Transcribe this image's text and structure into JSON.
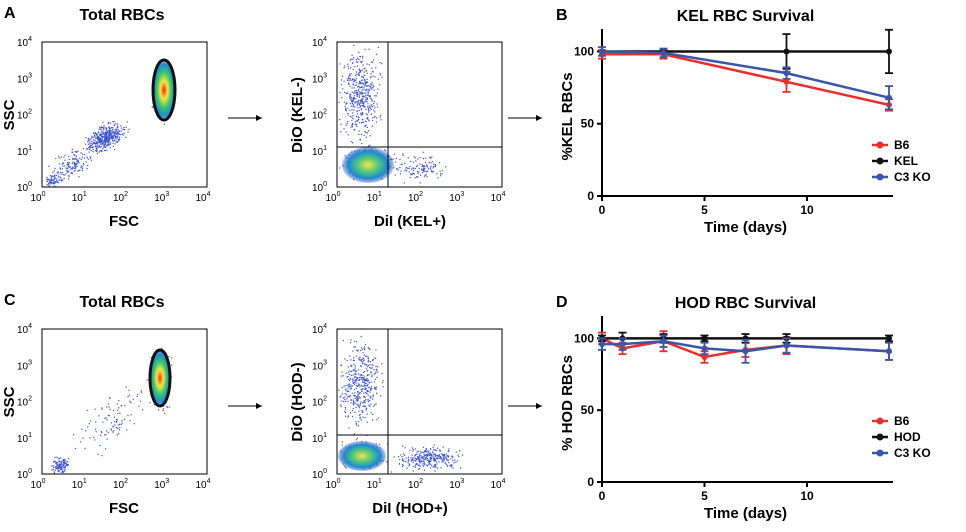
{
  "panels": {
    "A": {
      "letter": "A",
      "title": "Total RBCs",
      "scatter1": {
        "ylabel": "SSC",
        "xlabel": "FSC"
      },
      "scatter2": {
        "ylabel": "DiO (KEL-)",
        "xlabel": "DiI (KEL+)"
      }
    },
    "C": {
      "letter": "C",
      "title": "Total RBCs",
      "scatter1": {
        "ylabel": "SSC",
        "xlabel": "FSC"
      },
      "scatter2": {
        "ylabel": "DiO (HOD-)",
        "xlabel": "DiI (HOD+)"
      }
    },
    "B_letter": "B",
    "D_letter": "D"
  },
  "flow_ticks": [
    "10",
    "10",
    "10",
    "10",
    "10"
  ],
  "flow_tick_exps": [
    "0",
    "1",
    "2",
    "3",
    "4"
  ],
  "colors": {
    "B6": "#e8302a",
    "KEL": "#111111",
    "HOD": "#111111",
    "C3KO": "#3a56a8"
  },
  "chart_data": [
    {
      "type": "line",
      "title": "KEL RBC Survival",
      "xlabel": "Time (days)",
      "ylabel": "%KEL RBCs",
      "xlim": [
        0,
        14
      ],
      "ylim": [
        0,
        110
      ],
      "xticks": [
        "0",
        "5",
        "10"
      ],
      "yticks": [
        "0",
        "50",
        "100"
      ],
      "series": [
        {
          "name": "B6",
          "color": "#e8302a",
          "x": [
            0,
            3,
            9,
            14
          ],
          "y": [
            98,
            98,
            79,
            63
          ],
          "err": [
            3,
            3,
            7,
            4
          ]
        },
        {
          "name": "KEL",
          "color": "#111111",
          "x": [
            0,
            3,
            9,
            14
          ],
          "y": [
            100,
            100,
            100,
            100
          ],
          "err": [
            0,
            0,
            12,
            15
          ]
        },
        {
          "name": "C3 KO",
          "color": "#3a56a8",
          "x": [
            0,
            3,
            9,
            14
          ],
          "y": [
            100,
            99,
            85,
            68
          ],
          "err": [
            3,
            3,
            4,
            8
          ]
        }
      ],
      "legend": [
        "B6",
        "KEL",
        "C3 KO"
      ]
    },
    {
      "type": "line",
      "title": "HOD RBC Survival",
      "xlabel": "Time (days)",
      "ylabel": "% HOD RBCs",
      "xlim": [
        0,
        14
      ],
      "ylim": [
        0,
        110
      ],
      "xticks": [
        "0",
        "5",
        "10"
      ],
      "yticks": [
        "0",
        "50",
        "100"
      ],
      "series": [
        {
          "name": "B6",
          "color": "#e8302a",
          "x": [
            0,
            1,
            3,
            5,
            7,
            9,
            14
          ],
          "y": [
            100,
            93,
            98,
            87,
            92,
            95,
            91
          ],
          "err": [
            4,
            4,
            7,
            4,
            5,
            6,
            6
          ]
        },
        {
          "name": "HOD",
          "color": "#111111",
          "x": [
            0,
            1,
            3,
            5,
            7,
            9,
            14
          ],
          "y": [
            100,
            100,
            100,
            100,
            100,
            100,
            100
          ],
          "err": [
            2,
            4,
            3,
            2,
            3,
            3,
            2
          ]
        },
        {
          "name": "C3 KO",
          "color": "#3a56a8",
          "x": [
            0,
            1,
            3,
            5,
            7,
            9,
            14
          ],
          "y": [
            96,
            96,
            98,
            93,
            91,
            95,
            91
          ],
          "err": [
            4,
            4,
            4,
            4,
            8,
            5,
            6
          ]
        }
      ],
      "legend": [
        "B6",
        "HOD",
        "C3 KO"
      ]
    }
  ]
}
